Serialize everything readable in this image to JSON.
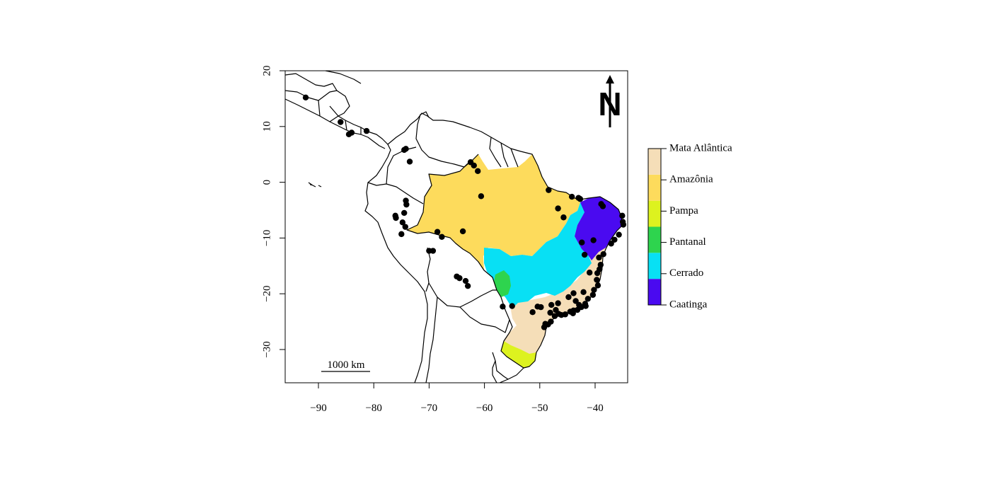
{
  "map": {
    "x_axis": {
      "ticks": [
        -90,
        -80,
        -70,
        -60,
        -50,
        -40
      ],
      "labels": [
        "−90",
        "−80",
        "−70",
        "−60",
        "−50",
        "−40"
      ]
    },
    "y_axis": {
      "ticks": [
        20,
        10,
        0,
        -10,
        -20,
        -30
      ],
      "labels": [
        "20",
        "10",
        "0",
        "−10",
        "−20",
        "−30"
      ]
    },
    "scale_bar_label": "1000 km",
    "north_arrow_label": "N",
    "legend": {
      "entries": [
        {
          "label": "Mata Atlântica",
          "color": "#F5DEB8"
        },
        {
          "label": "Amazônia",
          "color": "#FDDB5C"
        },
        {
          "label": "Pampa",
          "color": "#DDF21F"
        },
        {
          "label": "Pantanal",
          "color": "#2ED44E"
        },
        {
          "label": "Cerrado",
          "color": "#08E0F4"
        },
        {
          "label": "Caatinga",
          "color": "#4A0AF0"
        }
      ]
    },
    "occurrence_color": "#000000",
    "occurrences": [
      [
        -92.3,
        15.2
      ],
      [
        -86.0,
        10.8
      ],
      [
        -84.0,
        8.9
      ],
      [
        -84.5,
        8.6
      ],
      [
        -81.3,
        9.2
      ],
      [
        -74.5,
        5.8
      ],
      [
        -74.2,
        6.0
      ],
      [
        -73.5,
        3.7
      ],
      [
        -74.2,
        -3.3
      ],
      [
        -74.1,
        -4.0
      ],
      [
        -74.5,
        -5.5
      ],
      [
        -76.1,
        -6.0
      ],
      [
        -76.0,
        -6.4
      ],
      [
        -74.8,
        -7.2
      ],
      [
        -74.3,
        -8.0
      ],
      [
        -75.0,
        -9.3
      ],
      [
        -70.0,
        -12.3
      ],
      [
        -69.3,
        -12.3
      ],
      [
        -68.5,
        -8.9
      ],
      [
        -67.7,
        -9.8
      ],
      [
        -63.9,
        -8.8
      ],
      [
        -62.5,
        3.6
      ],
      [
        -61.9,
        3.0
      ],
      [
        -61.2,
        2.0
      ],
      [
        -60.6,
        -2.5
      ],
      [
        -65.0,
        -16.9
      ],
      [
        -64.5,
        -17.2
      ],
      [
        -63.4,
        -17.7
      ],
      [
        -63.0,
        -18.6
      ],
      [
        -48.4,
        -1.4
      ],
      [
        -46.7,
        -4.7
      ],
      [
        -45.7,
        -6.3
      ],
      [
        -44.2,
        -2.6
      ],
      [
        -43.0,
        -2.8
      ],
      [
        -42.7,
        -3.0
      ],
      [
        -38.9,
        -3.9
      ],
      [
        -38.6,
        -4.3
      ],
      [
        -35.1,
        -6.0
      ],
      [
        -35.0,
        -7.1
      ],
      [
        -34.9,
        -7.6
      ],
      [
        -35.7,
        -9.4
      ],
      [
        -36.5,
        -10.3
      ],
      [
        -37.1,
        -11.0
      ],
      [
        -38.5,
        -12.9
      ],
      [
        -39.3,
        -13.5
      ],
      [
        -39.0,
        -14.8
      ],
      [
        -39.2,
        -15.6
      ],
      [
        -39.6,
        -16.3
      ],
      [
        -39.7,
        -17.5
      ],
      [
        -39.5,
        -18.5
      ],
      [
        -40.2,
        -19.3
      ],
      [
        -40.4,
        -20.2
      ],
      [
        -41.3,
        -20.9
      ],
      [
        -41.8,
        -21.8
      ],
      [
        -42.5,
        -22.4
      ],
      [
        -43.2,
        -22.9
      ],
      [
        -43.9,
        -23.0
      ],
      [
        -44.5,
        -23.2
      ],
      [
        -45.4,
        -23.7
      ],
      [
        -46.1,
        -23.8
      ],
      [
        -46.6,
        -23.6
      ],
      [
        -47.3,
        -24.0
      ],
      [
        -48.0,
        -25.0
      ],
      [
        -48.5,
        -25.5
      ],
      [
        -49.2,
        -26.0
      ],
      [
        -49.0,
        -25.4
      ],
      [
        -43.9,
        -19.9
      ],
      [
        -43.5,
        -21.3
      ],
      [
        -44.8,
        -20.6
      ],
      [
        -42.1,
        -19.7
      ],
      [
        -41.0,
        -16.2
      ],
      [
        -42.4,
        -10.8
      ],
      [
        -41.9,
        -13.0
      ],
      [
        -40.3,
        -10.4
      ],
      [
        -47.9,
        -22.0
      ],
      [
        -47.1,
        -22.9
      ],
      [
        -46.7,
        -21.7
      ],
      [
        -48.1,
        -23.4
      ],
      [
        -49.8,
        -22.4
      ],
      [
        -50.4,
        -22.3
      ],
      [
        -51.3,
        -23.3
      ],
      [
        -55.0,
        -22.2
      ],
      [
        -56.7,
        -22.3
      ],
      [
        -41.7,
        -22.2
      ],
      [
        -44.0,
        -23.5
      ],
      [
        -42.9,
        -22.0
      ]
    ]
  }
}
